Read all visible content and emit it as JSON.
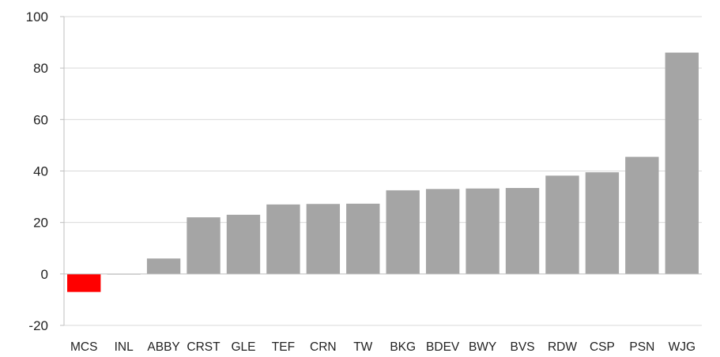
{
  "chart_data": {
    "type": "bar",
    "title": "",
    "xlabel": "",
    "ylabel": "",
    "categories": [
      "MCS",
      "INL",
      "ABBY",
      "CRST",
      "GLE",
      "TEF",
      "CRN",
      "TW",
      "BKG",
      "BDEV",
      "BWY",
      "BVS",
      "RDW",
      "CSP",
      "PSN",
      "WJG"
    ],
    "values": [
      -7,
      0,
      6,
      22,
      23,
      27,
      27.2,
      27.3,
      32.5,
      33,
      33.2,
      33.4,
      38.2,
      39.5,
      45.5,
      86
    ],
    "ylim": [
      -20,
      100
    ],
    "yticks": [
      -20,
      0,
      20,
      40,
      60,
      80,
      100
    ],
    "grid": true,
    "legend": "none",
    "colors": {
      "positive": "#a5a5a5",
      "negative": "#ff0000",
      "grid": "#d9d9d9",
      "axis": "#bfbfbf"
    }
  }
}
